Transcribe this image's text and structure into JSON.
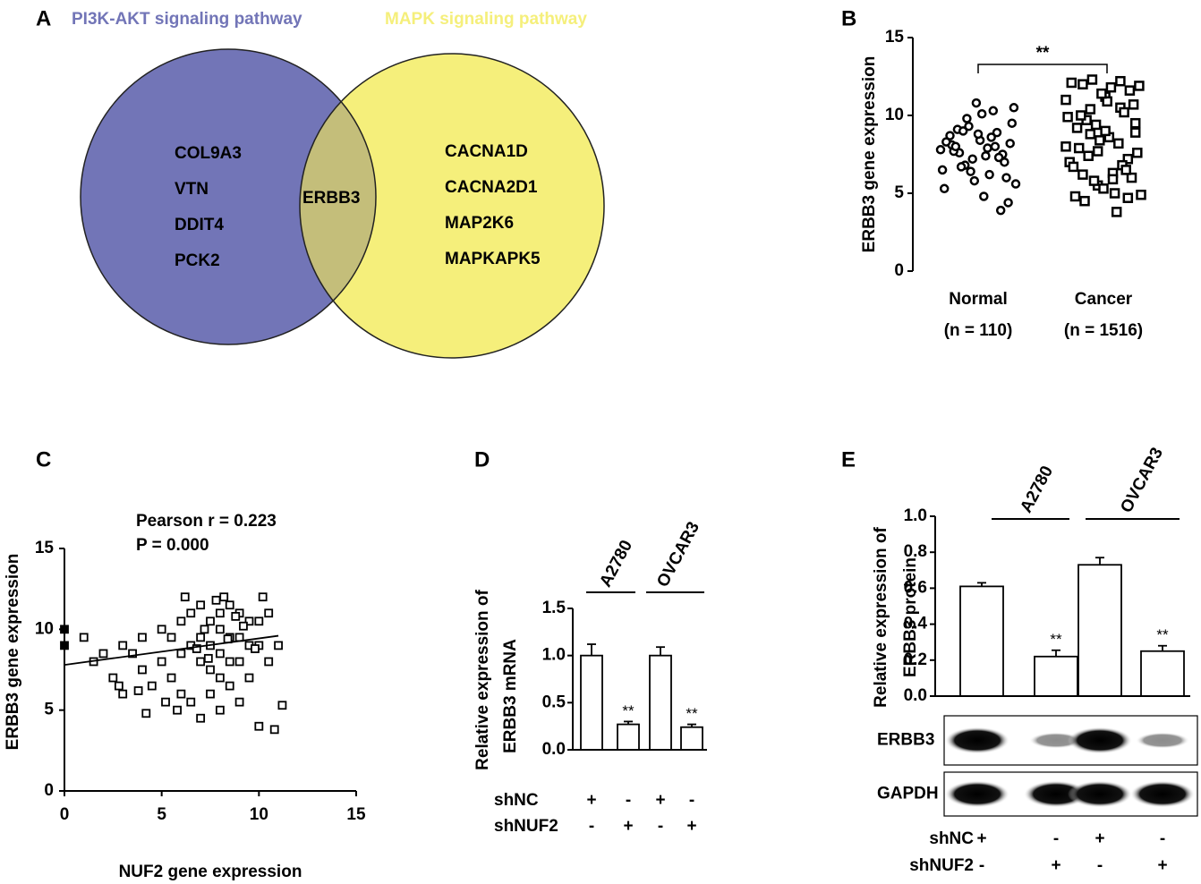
{
  "panel_labels": [
    "A",
    "B",
    "C",
    "D",
    "E"
  ],
  "chart_data": [
    {
      "type": "venn",
      "sets": [
        {
          "name": "PI3K-AKT signaling pathway",
          "color": "#7275b7",
          "items": [
            "COL9A3",
            "VTN",
            "DDIT4",
            "PCK2"
          ]
        },
        {
          "name": "MAPK signaling pathway",
          "color": "#f5ef7b",
          "items": [
            "CACNA1D",
            "CACNA2D1",
            "MAP2K6",
            "MAPKAPK5"
          ]
        }
      ],
      "intersection": [
        "ERBB3"
      ],
      "intersection_color": "#c4be7a"
    },
    {
      "type": "strip",
      "ylabel": "ERBB3 gene expression",
      "categories": [
        "Normal",
        "Cancer"
      ],
      "category_notes": [
        "(n = 110)",
        "(n = 1516)"
      ],
      "values": [
        [
          7.8,
          8.2,
          7.5,
          8.0,
          7.9,
          8.4,
          7.2,
          6.8,
          9.1,
          8.7,
          6.5,
          9.5,
          7.0,
          8.9,
          6.2,
          10.1,
          5.8,
          9.8,
          7.6,
          8.1,
          5.3,
          10.5,
          6.0,
          7.3,
          8.6,
          4.8,
          10.8,
          9.3,
          6.7,
          7.7,
          8.3,
          5.6,
          4.4,
          3.9,
          10.3,
          7.4,
          8.8,
          6.4,
          9.0,
          8.0
        ],
        [
          8.0,
          9.5,
          7.2,
          10.5,
          6.3,
          11.2,
          5.5,
          8.8,
          12.0,
          4.8,
          9.9,
          7.6,
          11.6,
          6.8,
          5.0,
          10.9,
          8.4,
          12.3,
          4.5,
          9.2,
          7.0,
          11.9,
          6.0,
          10.2,
          3.8,
          8.6,
          11.4,
          5.8,
          9.7,
          7.9,
          12.1,
          4.9,
          10.7,
          6.5,
          8.2,
          11.8,
          5.3,
          9.4,
          7.4,
          10.0,
          6.7,
          11.0,
          8.9,
          4.7,
          12.2,
          5.9,
          9.0,
          7.7,
          10.4,
          6.2
        ]
      ],
      "ylim": [
        0,
        15
      ],
      "yticks": [
        0,
        5,
        10,
        15
      ],
      "significance": "**"
    },
    {
      "type": "scatter",
      "xlabel": "NUF2 gene expression",
      "ylabel": "ERBB3 gene expression",
      "annotations": [
        "Pearson r = 0.223",
        "P = 0.000"
      ],
      "x": [
        0,
        0,
        1,
        1.5,
        2,
        2.5,
        3,
        3,
        3.5,
        4,
        4,
        4.5,
        5,
        5,
        5.5,
        5.5,
        6,
        6,
        6,
        6.5,
        6.5,
        6.5,
        7,
        7,
        7,
        7,
        7.5,
        7.5,
        7.5,
        7.5,
        8,
        8,
        8,
        8,
        8,
        8.5,
        8.5,
        8.5,
        8.5,
        9,
        9,
        9,
        9,
        9.5,
        9.5,
        9.5,
        10,
        10,
        10,
        10.5,
        10.5,
        11,
        11.2,
        4.2,
        5.8,
        6.2,
        7.2,
        8.2,
        9.2,
        10.2,
        7.8,
        8.8,
        6.8,
        5.2,
        3.8,
        2.8,
        9.8,
        10.8,
        7.4,
        8.4
      ],
      "y": [
        10,
        9,
        9.5,
        8,
        8.5,
        7,
        9,
        6,
        8.5,
        7.5,
        9.5,
        6.5,
        10,
        8,
        9.5,
        7,
        10.5,
        8.5,
        6,
        11,
        9,
        5.5,
        11.5,
        9.5,
        8,
        4.5,
        10.5,
        9,
        7.5,
        6,
        11,
        10,
        8.5,
        7,
        5,
        11.5,
        9.5,
        8,
        6.5,
        11,
        9.5,
        8,
        5.5,
        10.5,
        9,
        7,
        10.5,
        9,
        4,
        11,
        8,
        9,
        5.3,
        4.8,
        5,
        12,
        10,
        12,
        10.2,
        12,
        11.8,
        10.8,
        8.8,
        5.5,
        6.2,
        6.5,
        8.8,
        3.8,
        8.2,
        9.4
      ],
      "fit": {
        "x": [
          0,
          11
        ],
        "y": [
          7.8,
          9.6
        ]
      },
      "xlim": [
        0,
        15
      ],
      "ylim": [
        0,
        15
      ],
      "xticks": [
        0,
        5,
        10,
        15
      ],
      "yticks": [
        0,
        5,
        10,
        15
      ]
    },
    {
      "type": "bar",
      "ylabel": [
        "Relative expression of",
        "ERBB3 mRNA"
      ],
      "values": [
        1.0,
        0.27,
        1.0,
        0.24
      ],
      "errors": [
        0.12,
        0.03,
        0.09,
        0.03
      ],
      "annotations": [
        {
          "index": 1,
          "text": "**"
        },
        {
          "index": 3,
          "text": "**"
        }
      ],
      "groups": [
        {
          "name": "A2780",
          "span": [
            0,
            1
          ]
        },
        {
          "name": "OVCAR3",
          "span": [
            2,
            3
          ]
        }
      ],
      "conditions": [
        {
          "name": "shNC",
          "signs": [
            "+",
            "-",
            "+",
            "-"
          ]
        },
        {
          "name": "shNUF2",
          "signs": [
            "-",
            "+",
            "-",
            "+"
          ]
        }
      ],
      "ylim": [
        0,
        1.5
      ],
      "yticks": [
        {
          "value": 0,
          "label": "0.0"
        },
        0.5,
        {
          "value": 1,
          "label": "1.0"
        },
        1.5
      ]
    },
    {
      "type": "bar",
      "ylabel": [
        "Relative expression of",
        "ERBB3 protein"
      ],
      "values": [
        0.61,
        0.22,
        0.73,
        0.25
      ],
      "errors": [
        0.02,
        0.035,
        0.04,
        0.03
      ],
      "annotations": [
        {
          "index": 1,
          "text": "**"
        },
        {
          "index": 3,
          "text": "**"
        }
      ],
      "groups": [
        {
          "name": "A2780",
          "span": [
            0,
            1
          ]
        },
        {
          "name": "OVCAR3",
          "span": [
            2,
            3
          ]
        }
      ],
      "conditions": [
        {
          "name": "shNC",
          "signs": [
            "+",
            "-",
            "+",
            "-"
          ]
        },
        {
          "name": "shNUF2",
          "signs": [
            "-",
            "+",
            "-",
            "+"
          ]
        }
      ],
      "blots": [
        "ERBB3",
        "GAPDH"
      ],
      "ylim": [
        0,
        1
      ],
      "yticks": [
        {
          "value": 0,
          "label": "0.0"
        },
        0.2,
        0.4,
        0.6,
        0.8,
        {
          "value": 1,
          "label": "1.0"
        }
      ]
    }
  ]
}
